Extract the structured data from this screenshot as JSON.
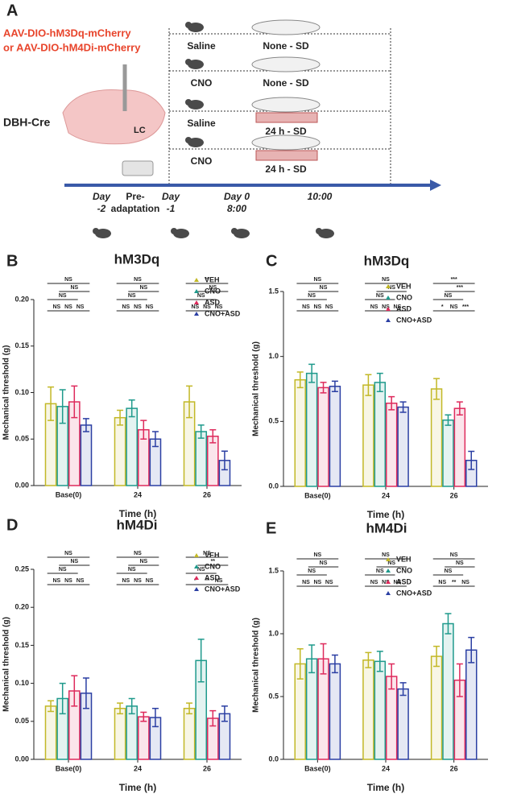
{
  "diagram": {
    "panel_label": "A",
    "virus": [
      "AAV-DIO-hM3Dq-mCherry",
      "or AAV-DIO-hM4Di-mCherry"
    ],
    "mouse_line": "DBH-Cre",
    "region": "LC",
    "groups": [
      {
        "treatment": "Saline",
        "condition": "None - SD"
      },
      {
        "treatment": "CNO",
        "condition": "None - SD"
      },
      {
        "treatment": "Saline",
        "condition": "24 h - SD"
      },
      {
        "treatment": "CNO",
        "condition": "24 h - SD"
      }
    ],
    "timeline": [
      [
        "Day",
        "-2"
      ],
      [
        "Pre-",
        "adaptation"
      ],
      [
        "Day",
        "-1"
      ],
      [
        "Day 0",
        "8:00"
      ],
      [
        "10:00"
      ]
    ]
  },
  "chart_data": [
    {
      "panel": "B",
      "type": "bar",
      "title": "hM3Dq",
      "xlabel": "Time (h)",
      "ylabel": "Mechanical threshold (g)",
      "categories": [
        "Base(0)",
        "24",
        "26"
      ],
      "series": [
        {
          "name": "VEH",
          "color": "#c2b826",
          "values": [
            0.088,
            0.073,
            0.09
          ],
          "errors": [
            0.018,
            0.008,
            0.017
          ]
        },
        {
          "name": "CNO",
          "color": "#1f9a8c",
          "values": [
            0.085,
            0.083,
            0.058
          ],
          "errors": [
            0.018,
            0.009,
            0.007
          ]
        },
        {
          "name": "ASD",
          "color": "#de2a5c",
          "values": [
            0.09,
            0.06,
            0.053
          ],
          "errors": [
            0.017,
            0.01,
            0.007
          ]
        },
        {
          "name": "CNO+ASD",
          "color": "#2b3fa3",
          "values": [
            0.065,
            0.05,
            0.027
          ],
          "errors": [
            0.007,
            0.008,
            0.01
          ]
        }
      ],
      "ylim": [
        0,
        0.2
      ],
      "yticks": [
        {
          "value": 0,
          "label": "0.00"
        },
        0.05,
        {
          "value": 0.1,
          "label": "0.10"
        },
        0.15,
        {
          "value": 0.2,
          "label": "0.20"
        }
      ],
      "significance": [
        [
          "NS",
          "NS",
          "NS",
          "NS",
          "NS",
          "NS"
        ],
        [
          "NS",
          "NS",
          "NS",
          "NS",
          "NS",
          "NS"
        ],
        [
          "**",
          "NS",
          "NS",
          "NS",
          "NS",
          "NS"
        ]
      ]
    },
    {
      "panel": "C",
      "type": "bar",
      "title": "hM3Dq",
      "xlabel": "Time (h)",
      "ylabel": "Mechanical threshold (g)",
      "categories": [
        "Base(0)",
        "24",
        "26"
      ],
      "series": [
        {
          "name": "VEH",
          "color": "#c2b826",
          "values": [
            0.82,
            0.78,
            0.75
          ],
          "errors": [
            0.06,
            0.08,
            0.08
          ]
        },
        {
          "name": "CNO",
          "color": "#1f9a8c",
          "values": [
            0.87,
            0.8,
            0.51
          ],
          "errors": [
            0.07,
            0.07,
            0.04
          ]
        },
        {
          "name": "ASD",
          "color": "#de2a5c",
          "values": [
            0.76,
            0.64,
            0.6
          ],
          "errors": [
            0.04,
            0.05,
            0.05
          ]
        },
        {
          "name": "CNO+ASD",
          "color": "#2b3fa3",
          "values": [
            0.77,
            0.61,
            0.2
          ],
          "errors": [
            0.04,
            0.04,
            0.07
          ]
        }
      ],
      "ylim": [
        0,
        1.5
      ],
      "yticks": [
        {
          "value": 0,
          "label": "0.0"
        },
        0.5,
        {
          "value": 1,
          "label": "1.0"
        },
        1.5
      ],
      "significance": [
        [
          "NS",
          "NS",
          "NS",
          "NS",
          "NS",
          "NS"
        ],
        [
          "NS",
          "NS",
          "NS",
          "NS",
          "NS",
          "NS"
        ],
        [
          "***",
          "***",
          "NS",
          "*",
          "NS",
          "***"
        ]
      ]
    },
    {
      "panel": "D",
      "type": "bar",
      "title": "hM4Di",
      "xlabel": "Time (h)",
      "ylabel": "Mechanical threshold (g)",
      "categories": [
        "Base(0)",
        "24",
        "26"
      ],
      "series": [
        {
          "name": "VEH",
          "color": "#c2b826",
          "values": [
            0.07,
            0.067,
            0.067
          ],
          "errors": [
            0.007,
            0.007,
            0.007
          ]
        },
        {
          "name": "CNO",
          "color": "#1f9a8c",
          "values": [
            0.08,
            0.07,
            0.13
          ],
          "errors": [
            0.02,
            0.01,
            0.028
          ]
        },
        {
          "name": "ASD",
          "color": "#de2a5c",
          "values": [
            0.09,
            0.056,
            0.054
          ],
          "errors": [
            0.02,
            0.006,
            0.01
          ]
        },
        {
          "name": "CNO+ASD",
          "color": "#2b3fa3",
          "values": [
            0.087,
            0.055,
            0.06
          ],
          "errors": [
            0.02,
            0.012,
            0.01
          ]
        }
      ],
      "ylim": [
        0,
        0.25
      ],
      "yticks": [
        {
          "value": 0,
          "label": "0.00"
        },
        0.05,
        {
          "value": 0.1,
          "label": "0.10"
        },
        0.15,
        {
          "value": 0.2,
          "label": "0.20"
        },
        0.25
      ],
      "significance": [
        [
          "NS",
          "NS",
          "NS",
          "NS",
          "NS",
          "NS"
        ],
        [
          "NS",
          "NS",
          "NS",
          "NS",
          "NS",
          "NS"
        ],
        [
          "NS",
          "**",
          "NS",
          "*",
          "**",
          "NS"
        ]
      ]
    },
    {
      "panel": "E",
      "type": "bar",
      "title": "hM4Di",
      "xlabel": "Time (h)",
      "ylabel": "Mechanical threshold (g)",
      "categories": [
        "Base(0)",
        "24",
        "26"
      ],
      "series": [
        {
          "name": "VEH",
          "color": "#c2b826",
          "values": [
            0.76,
            0.79,
            0.82
          ],
          "errors": [
            0.12,
            0.06,
            0.08
          ]
        },
        {
          "name": "CNO",
          "color": "#1f9a8c",
          "values": [
            0.8,
            0.78,
            1.08
          ],
          "errors": [
            0.11,
            0.08,
            0.08
          ]
        },
        {
          "name": "ASD",
          "color": "#de2a5c",
          "values": [
            0.8,
            0.66,
            0.63
          ],
          "errors": [
            0.12,
            0.1,
            0.13
          ]
        },
        {
          "name": "CNO+ASD",
          "color": "#2b3fa3",
          "values": [
            0.76,
            0.56,
            0.87
          ],
          "errors": [
            0.07,
            0.05,
            0.1
          ]
        }
      ],
      "ylim": [
        0,
        1.5
      ],
      "yticks": [
        {
          "value": 0,
          "label": "0.0"
        },
        0.5,
        {
          "value": 1,
          "label": "1.0"
        },
        1.5
      ],
      "significance": [
        [
          "NS",
          "NS",
          "NS",
          "NS",
          "NS",
          "NS"
        ],
        [
          "NS",
          "NS",
          "NS",
          "NS",
          "NS",
          "NS"
        ],
        [
          "NS",
          "NS",
          "NS",
          "NS",
          "**",
          "NS"
        ]
      ]
    }
  ]
}
